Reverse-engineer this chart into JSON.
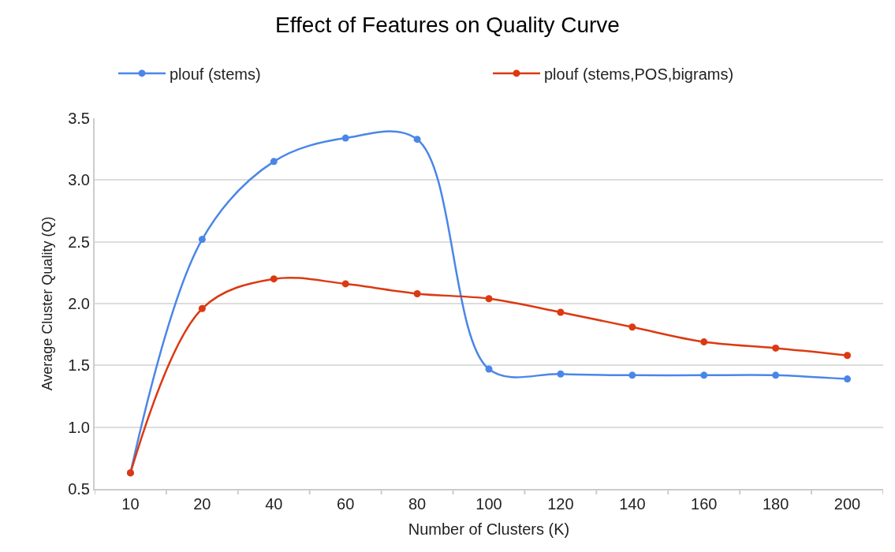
{
  "chart_data": {
    "type": "line",
    "title": "Effect of Features on Quality Curve",
    "xlabel": "Number of Clusters (K)",
    "ylabel": "Average Cluster Quality (Q)",
    "categories": [
      "10",
      "20",
      "40",
      "60",
      "80",
      "100",
      "120",
      "140",
      "160",
      "180",
      "200"
    ],
    "series": [
      {
        "name": "plouf (stems)",
        "color": "#4a86e8",
        "values": [
          0.63,
          2.52,
          3.15,
          3.34,
          3.33,
          1.47,
          1.43,
          1.42,
          1.42,
          1.42,
          1.39
        ]
      },
      {
        "name": "plouf (stems,POS,bigrams)",
        "color": "#dc3912",
        "values": [
          0.63,
          1.96,
          2.2,
          2.16,
          2.08,
          2.04,
          1.93,
          1.81,
          1.69,
          1.64,
          1.58
        ]
      }
    ],
    "ylim": [
      0.5,
      3.5
    ],
    "yticks": [
      {
        "value": 0.5,
        "label": "0.5"
      },
      {
        "value": 1,
        "label": "1.0"
      },
      {
        "value": 1.5,
        "label": "1.5"
      },
      {
        "value": 2,
        "label": "2.0"
      },
      {
        "value": 2.5,
        "label": "2.5"
      },
      {
        "value": 3,
        "label": "3.0"
      },
      {
        "value": 3.5,
        "label": "3.5"
      }
    ],
    "grid": "y",
    "legend": "top",
    "marker": "circle",
    "line_style": "solid"
  }
}
